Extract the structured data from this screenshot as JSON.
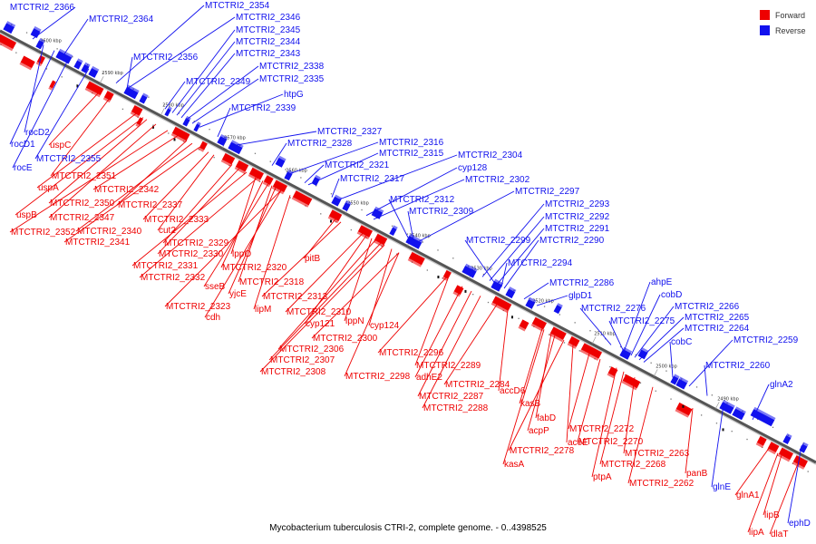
{
  "colors": {
    "forward": "#ee0000",
    "reverse": "#1111ee",
    "backbone": "#888888"
  },
  "legend": {
    "forward_label": "Forward",
    "reverse_label": "Reverse"
  },
  "caption": "Mycobacterium tuberculosis CTRI-2, complete genome. - 0..4398525",
  "ticks": [
    "2600 kbp",
    "2590 kbp",
    "2580 kbp",
    "2570 kbp",
    "2560 kbp",
    "2550 kbp",
    "2540 kbp",
    "2530 kbp",
    "2520 kbp",
    "2510 kbp",
    "2500 kbp",
    "2490 kbp"
  ],
  "reverse_labels": [
    "MTCTRI2_2366",
    "MTCTRI2_2364",
    "MTCTRI2_2354",
    "MTCTRI2_2346",
    "MTCTRI2_2345",
    "MTCTRI2_2344",
    "MTCTRI2_2343",
    "MTCTRI2_2356",
    "MTCTRI2_2338",
    "MTCTRI2_2335",
    "MTCTRI2_2349",
    "htpG",
    "MTCTRI2_2339",
    "rocD2",
    "rocD1",
    "rocE",
    "MTCTRI2_2355",
    "MTCTRI2_2327",
    "MTCTRI2_2328",
    "MTCTRI2_2316",
    "MTCTRI2_2315",
    "MTCTRI2_2321",
    "MTCTRI2_2317",
    "MTCTRI2_2304",
    "cyp128",
    "MTCTRI2_2302",
    "MTCTRI2_2312",
    "MTCTRI2_2309",
    "MTCTRI2_2297",
    "MTCTRI2_2293",
    "MTCTRI2_2292",
    "MTCTRI2_2291",
    "MTCTRI2_2299",
    "MTCTRI2_2290",
    "MTCTRI2_2294",
    "MTCTRI2_2286",
    "glpD1",
    "ahpE",
    "cobD",
    "MTCTRI2_2276",
    "MTCTRI2_2266",
    "MTCTRI2_2265",
    "MTCTRI2_2275",
    "MTCTRI2_2264",
    "cobC",
    "MTCTRI2_2259",
    "MTCTRI2_2260",
    "glnA2",
    "glnE",
    "ephD"
  ],
  "forward_labels": [
    "uspC",
    "MTCTRI2_2351",
    "uspA",
    "uspB",
    "MTCTRI2_2350",
    "MTCTRI2_2342",
    "MTCTRI2_2347",
    "MTCTRI2_2337",
    "MTCTRI2_2352",
    "MTCTRI2_2340",
    "MTCTRI2_2333",
    "MTCTRI2_2341",
    "cut2",
    "MTCTRI2_2329",
    "MTCTRI2_2330",
    "lppO",
    "MTCTRI2_2331",
    "MTCTRI2_2320",
    "MTCTRI2_2332",
    "sseB",
    "MTCTRI2_2318",
    "pitB",
    "yjcE",
    "MTCTRI2_2313",
    "MTCTRI2_2323",
    "lipM",
    "cdh",
    "MTCTRI2_2310",
    "cyp121",
    "lppN",
    "cyp124",
    "MTCTRI2_2300",
    "MTCTRI2_2306",
    "MTCTRI2_2296",
    "MTCTRI2_2307",
    "MTCTRI2_2289",
    "MTCTRI2_2308",
    "MTCTRI2_2298",
    "adhE2",
    "MTCTRI2_2284",
    "MTCTRI2_2287",
    "accD6",
    "MTCTRI2_2288",
    "kasB",
    "fabD",
    "acpP",
    "MTCTRI2_2272",
    "aceE",
    "MTCTRI2_2270",
    "MTCTRI2_2278",
    "MTCTRI2_2263",
    "MTCTRI2_2268",
    "kasA",
    "ptpA",
    "panB",
    "MTCTRI2_2262",
    "glnA1",
    "lipB",
    "lipA",
    "dlaT"
  ]
}
